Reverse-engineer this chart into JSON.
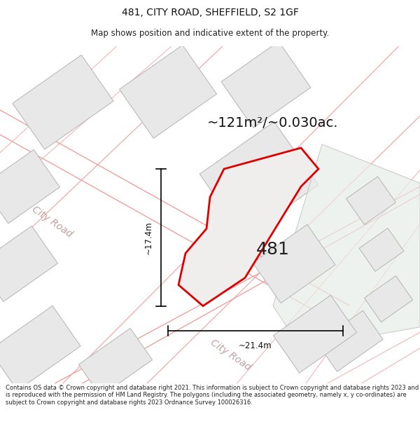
{
  "title": "481, CITY ROAD, SHEFFIELD, S2 1GF",
  "subtitle": "Map shows position and indicative extent of the property.",
  "area_text": "~121m²/~0.030ac.",
  "property_number": "481",
  "dim_height": "~17.4m",
  "dim_width": "~21.4m",
  "road_label_1": "City Road",
  "road_label_2": "City Road",
  "footer": "Contains OS data © Crown copyright and database right 2021. This information is subject to Crown copyright and database rights 2023 and is reproduced with the permission of HM Land Registry. The polygons (including the associated geometry, namely x, y co-ordinates) are subject to Crown copyright and database rights 2023 Ordnance Survey 100026316.",
  "bg_color": "#ffffff",
  "map_bg": "#ffffff",
  "building_fill": "#e8e8e8",
  "building_stroke": "#bbbbbb",
  "road_stroke": "#f0a0a0",
  "plot_stroke": "#dd0000",
  "plot_fill": "#f0eded",
  "green_fill": "#e8ede8",
  "title_fontsize": 10,
  "subtitle_fontsize": 8.5,
  "area_fontsize": 14,
  "num_fontsize": 18,
  "road_fontsize": 10,
  "footer_fontsize": 6.0
}
